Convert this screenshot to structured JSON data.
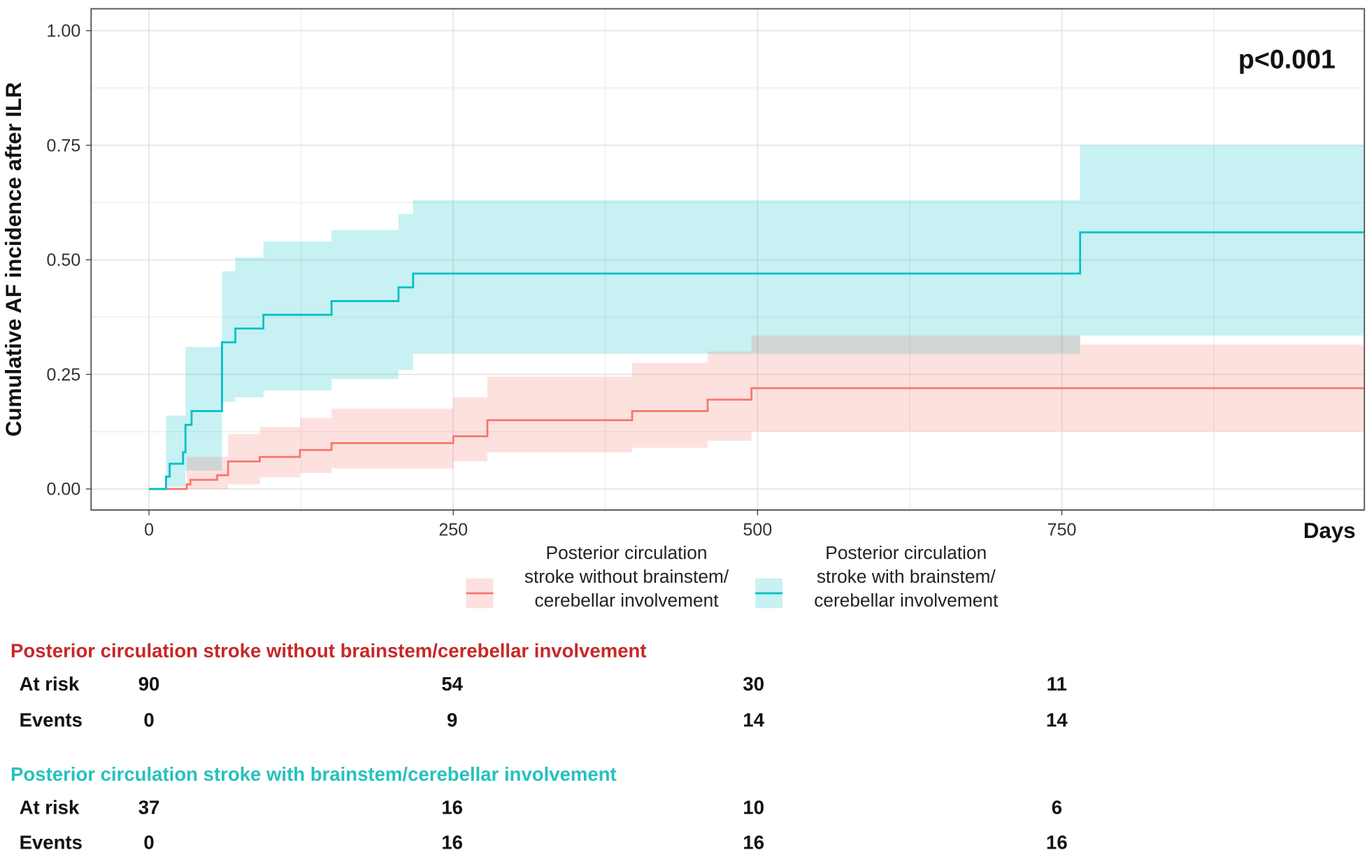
{
  "chart_data": {
    "type": "line",
    "subtype": "kaplan-meier cumulative incidence (step) with confidence bands",
    "ylabel": "Cumulative AF incidence after ILR",
    "xlabel": "Days",
    "xlim": [
      -95,
      1000
    ],
    "ylim": [
      -0.05,
      1.05
    ],
    "xticks": [
      0,
      250,
      500,
      750
    ],
    "yticks": [
      0,
      0.25,
      0.5,
      0.75,
      1.0
    ],
    "ytick_labels": [
      "0.00",
      "0.25",
      "0.50",
      "0.75",
      "1.00"
    ],
    "grid": true,
    "annotation": "p<0.001",
    "legend_position": "bottom",
    "series": [
      {
        "name": "Posterior circulation stroke without brainstem/ cerebellar involvement",
        "legend_lines": [
          "Posterior circulation",
          "stroke without brainstem/",
          "cerebellar involvement"
        ],
        "color": "#F8766D",
        "band_color": "#FADBD8",
        "steps": [
          [
            0,
            0
          ],
          [
            31,
            0.01
          ],
          [
            34,
            0.02
          ],
          [
            56,
            0.03
          ],
          [
            65,
            0.06
          ],
          [
            91,
            0.07
          ],
          [
            124,
            0.085
          ],
          [
            150,
            0.1
          ],
          [
            250,
            0.115
          ],
          [
            278,
            0.15
          ],
          [
            397,
            0.17
          ],
          [
            459,
            0.195
          ],
          [
            495,
            0.22
          ],
          [
            998,
            0.22
          ]
        ],
        "lower": [
          [
            31,
            0
          ],
          [
            65,
            0.01
          ],
          [
            91,
            0.025
          ],
          [
            124,
            0.035
          ],
          [
            150,
            0.045
          ],
          [
            250,
            0.06
          ],
          [
            278,
            0.08
          ],
          [
            397,
            0.09
          ],
          [
            459,
            0.105
          ],
          [
            495,
            0.125
          ],
          [
            998,
            0.125
          ]
        ],
        "upper": [
          [
            31,
            0.07
          ],
          [
            65,
            0.12
          ],
          [
            91,
            0.135
          ],
          [
            124,
            0.155
          ],
          [
            150,
            0.175
          ],
          [
            250,
            0.2
          ],
          [
            278,
            0.245
          ],
          [
            397,
            0.275
          ],
          [
            459,
            0.3
          ],
          [
            495,
            0.335
          ],
          [
            765,
            0.315
          ],
          [
            998,
            0.315
          ]
        ]
      },
      {
        "name": "Posterior circulation stroke with brainstem/ cerebellar involvement",
        "legend_lines": [
          "Posterior circulation",
          "stroke with brainstem/",
          "cerebellar involvement"
        ],
        "color": "#00BFC4",
        "band_color": "#CDEFF1",
        "steps": [
          [
            0,
            0
          ],
          [
            14,
            0.027
          ],
          [
            17,
            0.055
          ],
          [
            28,
            0.08
          ],
          [
            30,
            0.14
          ],
          [
            35,
            0.17
          ],
          [
            60,
            0.32
          ],
          [
            71,
            0.35
          ],
          [
            94,
            0.38
          ],
          [
            150,
            0.41
          ],
          [
            205,
            0.44
          ],
          [
            217,
            0.47
          ],
          [
            765,
            0.56
          ],
          [
            998,
            0.56
          ]
        ],
        "lower": [
          [
            14,
            0.005
          ],
          [
            30,
            0.04
          ],
          [
            60,
            0.19
          ],
          [
            71,
            0.2
          ],
          [
            94,
            0.215
          ],
          [
            150,
            0.24
          ],
          [
            205,
            0.26
          ],
          [
            217,
            0.295
          ],
          [
            765,
            0.335
          ],
          [
            998,
            0.335
          ]
        ],
        "upper": [
          [
            14,
            0.16
          ],
          [
            30,
            0.31
          ],
          [
            60,
            0.475
          ],
          [
            71,
            0.505
          ],
          [
            94,
            0.54
          ],
          [
            150,
            0.565
          ],
          [
            205,
            0.6
          ],
          [
            217,
            0.63
          ],
          [
            765,
            0.75
          ],
          [
            998,
            0.75
          ]
        ]
      }
    ]
  },
  "risk_table": {
    "groups": [
      {
        "title": "Posterior circulation stroke without brainstem/cerebellar involvement",
        "color": "#C62828",
        "rows": [
          {
            "label": "At risk",
            "values": [
              "90",
              "54",
              "30",
              "11"
            ]
          },
          {
            "label": "Events",
            "values": [
              "0",
              "9",
              "14",
              "14"
            ]
          }
        ]
      },
      {
        "title": "Posterior circulation stroke with brainstem/cerebellar involvement",
        "color": "#26C1BE",
        "rows": [
          {
            "label": "At risk",
            "values": [
              "37",
              "16",
              "10",
              "6"
            ]
          },
          {
            "label": "Events",
            "values": [
              "0",
              "16",
              "16",
              "16"
            ]
          }
        ]
      }
    ]
  }
}
